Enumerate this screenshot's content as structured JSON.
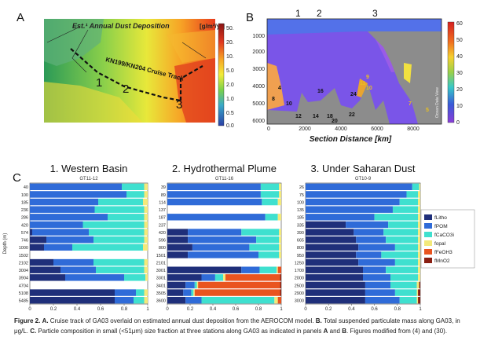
{
  "panel_letters": {
    "a": "A",
    "b": "B",
    "c": "C"
  },
  "map_panel": {
    "title": "Est.¹ Annual Dust Deposition",
    "unit": "[g/m²/yr]",
    "colorbar_ticks": [
      "50.",
      "20.",
      "10.",
      "5.0",
      "2.0",
      "1.0",
      "0.5",
      "0.0"
    ],
    "track_label": "KN199/KN204 Cruise Track",
    "station_labels": [
      "1",
      "2",
      "3"
    ]
  },
  "section_panel": {
    "xlabel": "Section Distance [km]",
    "x_ticks": [
      "0",
      "2000",
      "4000",
      "6000",
      "8000"
    ],
    "y_ticks": [
      "1000",
      "2000",
      "3000",
      "4000",
      "5000",
      "6000"
    ],
    "top_labels": [
      "1",
      "2",
      "3"
    ],
    "colorbar_ticks": [
      "60",
      "50",
      "40",
      "30",
      "20",
      "10",
      "0"
    ],
    "watermark": "Ocean Data View",
    "cell_labels": [
      "8",
      "4",
      "10",
      "12",
      "14",
      "16",
      "18",
      "20",
      "22",
      "24",
      "9",
      "11",
      "10",
      "7",
      "5"
    ]
  },
  "stacked_charts_common": {
    "ylabel": "Depth (m)",
    "xlabel": "Fraction",
    "x_ticks": [
      "0",
      "0.2",
      "0.4",
      "0.6",
      "0.8",
      "1"
    ],
    "legend": [
      "fLitho",
      "fPOM",
      "fCaCO3i",
      "fopal",
      "fFeOH3",
      "fMnO2"
    ],
    "colors": {
      "fLitho": "#1f2f7a",
      "fPOM": "#2f6bd8",
      "fCaCO3i": "#3fe0cf",
      "fopal": "#f3e97a",
      "fFeOH3": "#e9541f",
      "fMnO2": "#8a1f12"
    }
  },
  "chart_data": [
    {
      "type": "bar",
      "title": "1. Western Basin",
      "subtitle": "GT11-12",
      "categories": [
        "40",
        "100",
        "185",
        "236",
        "286",
        "420",
        "574",
        "746",
        "1000",
        "1502",
        "2102",
        "3004",
        "3904",
        "4704",
        "5108",
        "5485"
      ],
      "series": [
        {
          "name": "fLitho",
          "values": [
            0.0,
            0.0,
            0.0,
            0.0,
            0.0,
            0.0,
            0.02,
            0.14,
            0.12,
            0.0,
            0.2,
            0.26,
            0.3,
            0.0,
            0.72,
            0.72
          ]
        },
        {
          "name": "fPOM",
          "values": [
            0.78,
            0.82,
            0.58,
            0.55,
            0.66,
            0.45,
            0.48,
            0.4,
            0.24,
            0.0,
            0.34,
            0.3,
            0.5,
            0.0,
            0.18,
            0.16
          ]
        },
        {
          "name": "fCaCO3i",
          "values": [
            0.19,
            0.15,
            0.38,
            0.42,
            0.31,
            0.52,
            0.47,
            0.43,
            0.6,
            0.0,
            0.43,
            0.41,
            0.18,
            0.0,
            0.07,
            0.09
          ]
        },
        {
          "name": "fopal",
          "values": [
            0.03,
            0.03,
            0.04,
            0.03,
            0.03,
            0.03,
            0.03,
            0.03,
            0.04,
            0.0,
            0.03,
            0.03,
            0.02,
            0.0,
            0.03,
            0.03
          ]
        },
        {
          "name": "fFeOH3",
          "values": [
            0,
            0,
            0,
            0,
            0,
            0,
            0,
            0,
            0,
            0,
            0,
            0,
            0,
            0,
            0,
            0
          ]
        },
        {
          "name": "fMnO2",
          "values": [
            0,
            0,
            0,
            0,
            0,
            0,
            0,
            0,
            0,
            0,
            0,
            0,
            0,
            0,
            0,
            0
          ]
        }
      ],
      "xlim": [
        0,
        1
      ]
    },
    {
      "type": "bar",
      "title": "2. Hydrothermal Plume",
      "subtitle": "GT11-16",
      "categories": [
        "39",
        "89",
        "114",
        "137",
        "187",
        "237",
        "420",
        "596",
        "800",
        "1501",
        "2101",
        "3001",
        "3301",
        "3401",
        "3505",
        "3600"
      ],
      "series": [
        {
          "name": "fLitho",
          "values": [
            0.0,
            0.0,
            0.0,
            0.0,
            0.0,
            0.0,
            0.18,
            0.18,
            0.22,
            0.18,
            0.0,
            0.65,
            0.3,
            0.16,
            0.14,
            0.16
          ]
        },
        {
          "name": "fPOM",
          "values": [
            0.82,
            0.82,
            0.83,
            0.0,
            0.86,
            0.0,
            0.47,
            0.6,
            0.5,
            0.62,
            0.0,
            0.16,
            0.12,
            0.08,
            0.07,
            0.14
          ]
        },
        {
          "name": "fCaCO3i",
          "values": [
            0.16,
            0.16,
            0.14,
            0.0,
            0.11,
            0.0,
            0.33,
            0.2,
            0.26,
            0.18,
            0.0,
            0.15,
            0.07,
            0.02,
            0.02,
            0.64
          ]
        },
        {
          "name": "fopal",
          "values": [
            0.02,
            0.02,
            0.03,
            0.0,
            0.03,
            0.0,
            0.02,
            0.02,
            0.02,
            0.02,
            0.0,
            0.01,
            0.02,
            0.01,
            0.01,
            0.03
          ]
        },
        {
          "name": "fFeOH3",
          "values": [
            0,
            0,
            0,
            0,
            0,
            0,
            0,
            0,
            0,
            0,
            0,
            0.03,
            0.48,
            0.72,
            0.75,
            0.03
          ]
        },
        {
          "name": "fMnO2",
          "values": [
            0,
            0,
            0,
            0,
            0,
            0,
            0,
            0,
            0,
            0,
            0,
            0,
            0.01,
            0.01,
            0.01,
            0
          ]
        }
      ],
      "xlim": [
        0,
        1
      ]
    },
    {
      "type": "bar",
      "title": "3. Under Saharan Dust",
      "subtitle": "GT10-9",
      "categories": [
        "26",
        "75",
        "100",
        "135",
        "185",
        "335",
        "390",
        "665",
        "800",
        "950",
        "1250",
        "1700",
        "2000",
        "2500",
        "2900",
        "3000"
      ],
      "series": [
        {
          "name": "fLitho",
          "values": [
            0.0,
            0.0,
            0.0,
            0.0,
            0.0,
            0.35,
            0.42,
            0.44,
            0.46,
            0.44,
            0.46,
            0.5,
            0.5,
            0.52,
            0.52,
            0.52
          ]
        },
        {
          "name": "fPOM",
          "values": [
            0.93,
            0.88,
            0.82,
            0.76,
            0.6,
            0.37,
            0.26,
            0.26,
            0.32,
            0.22,
            0.32,
            0.2,
            0.24,
            0.22,
            0.26,
            0.3
          ]
        },
        {
          "name": "fCaCO3i",
          "values": [
            0.06,
            0.1,
            0.16,
            0.22,
            0.38,
            0.26,
            0.3,
            0.28,
            0.2,
            0.32,
            0.2,
            0.28,
            0.24,
            0.23,
            0.19,
            0.15
          ]
        },
        {
          "name": "fopal",
          "values": [
            0.01,
            0.02,
            0.02,
            0.02,
            0.02,
            0.02,
            0.02,
            0.02,
            0.02,
            0.02,
            0.02,
            0.02,
            0.02,
            0.02,
            0.01,
            0.01
          ]
        },
        {
          "name": "fFeOH3",
          "values": [
            0,
            0,
            0,
            0,
            0,
            0,
            0,
            0,
            0,
            0,
            0,
            0,
            0,
            0,
            0,
            0
          ]
        },
        {
          "name": "fMnO2",
          "values": [
            0,
            0,
            0,
            0,
            0,
            0,
            0,
            0,
            0,
            0,
            0,
            0,
            0,
            0.01,
            0.02,
            0.02
          ]
        }
      ],
      "xlim": [
        0,
        1
      ]
    }
  ],
  "caption": {
    "label": "Figure 2.",
    "a": "A.",
    "text_a": " Cruise track of GA03 overlaid on estimated annual dust deposition from the AEROCOM model. ",
    "b": "B.",
    "text_b": " Total suspended particulate mass along GA03, in μg/L. ",
    "c": "C.",
    "text_c": " Particle composition in small (<51μm) size fraction at three stations along GA03 as indicated in panels ",
    "a2": "A",
    "and": " and ",
    "b2": "B",
    "text_end": ". Figures modified from (4) and (30)."
  }
}
